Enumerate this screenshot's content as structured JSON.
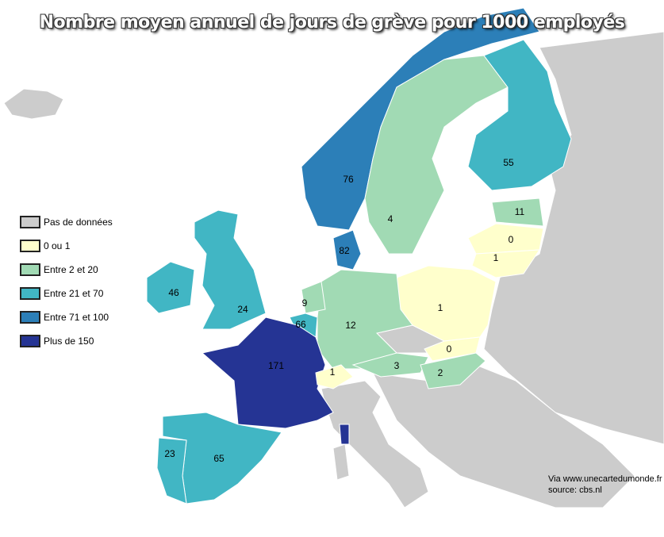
{
  "title": "Nombre moyen annuel de jours de grève pour 1000 employés",
  "colors": {
    "no_data": "#cccccc",
    "c0_1": "#ffffcc",
    "c2_20": "#a1dab4",
    "c21_70": "#41b6c4",
    "c71_100": "#2c7fb8",
    "c150": "#253494"
  },
  "legend": [
    {
      "label": "Pas de données",
      "color": "#cccccc"
    },
    {
      "label": "0 ou 1",
      "color": "#ffffcc"
    },
    {
      "label": "Entre 2 et 20",
      "color": "#a1dab4"
    },
    {
      "label": "Entre 21 et 70",
      "color": "#41b6c4"
    },
    {
      "label": "Entre 71 et 100",
      "color": "#2c7fb8"
    },
    {
      "label": "Plus de 150",
      "color": "#253494"
    }
  ],
  "countries": {
    "norway": "76",
    "sweden": "4",
    "finland": "55",
    "estonia": "11",
    "latvia": "0",
    "lithuania": "1",
    "denmark": "82",
    "poland": "1",
    "netherlands": "9",
    "belgium": "66",
    "germany": "12",
    "ireland": "46",
    "uk": "24",
    "france": "171",
    "switzerland": "1",
    "austria": "3",
    "slovakia": "0",
    "hungary": "2",
    "spain": "65",
    "portugal": "23"
  },
  "credit": {
    "line1": "Via www.unecartedumonde.fr",
    "line2": "source: cbs.nl"
  }
}
